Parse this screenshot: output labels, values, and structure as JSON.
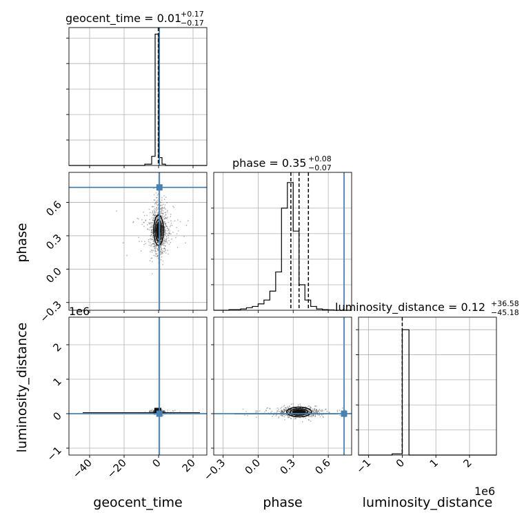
{
  "figure": {
    "type": "corner-plot"
  },
  "colors": {
    "truth": "#4682b4",
    "grid": "#b0b0b0",
    "ink": "#000000",
    "sample": "#333333"
  },
  "scale_labels": {
    "luminosity_y": "1e6",
    "luminosity_x": "1e6"
  },
  "titles": {
    "geocent_time": {
      "base": "geocent_time = 0.01",
      "sup": "+0.17",
      "sub": "−0.17"
    },
    "phase": {
      "base": "phase = 0.35",
      "sup": "+0.08",
      "sub": "−0.07"
    },
    "luminosity_distance": {
      "base": "luminosity_distance = 0.12",
      "sup": "+36.58",
      "sub": "−45.18"
    }
  },
  "chart_data": [
    {
      "type": "histogram",
      "panel": "geocent_time-marginal",
      "parameter": "geocent_time",
      "xlim": [
        -52,
        28
      ],
      "bin_edges": [
        -8,
        -4,
        -2,
        0,
        2,
        4,
        10
      ],
      "counts": [
        0.01,
        0.07,
        1.0,
        0.06,
        0.01,
        0
      ],
      "ylim": [
        0,
        1.05
      ],
      "quantile_lines": [
        -0.16,
        0.01,
        0.18
      ],
      "title": "geocent_time = 0.01 (+0.17 / −0.17)"
    },
    {
      "type": "histogram",
      "panel": "phase-marginal",
      "parameter": "phase",
      "xlim": [
        -0.38,
        0.8
      ],
      "bin_edges": [
        -0.3,
        -0.25,
        -0.2,
        -0.15,
        -0.1,
        -0.05,
        0.0,
        0.05,
        0.1,
        0.15,
        0.2,
        0.25,
        0.3,
        0.35,
        0.4,
        0.45,
        0.5,
        0.55,
        0.6,
        0.65
      ],
      "counts": [
        0,
        0.005,
        0.005,
        0.01,
        0.02,
        0.03,
        0.05,
        0.08,
        0.15,
        0.3,
        0.8,
        1.0,
        0.62,
        0.2,
        0.08,
        0.03,
        0.01,
        0.005,
        0.003
      ],
      "ylim": [
        0,
        1.08
      ],
      "quantile_lines": [
        0.28,
        0.35,
        0.43
      ],
      "truth": 0.735,
      "yticks": [
        0.2,
        0.4,
        0.6,
        0.8
      ],
      "title": "phase = 0.35 (+0.08 / −0.07)"
    },
    {
      "type": "histogram",
      "panel": "luminosity_distance-marginal",
      "parameter": "luminosity_distance",
      "scale": "1e6",
      "xlim": [
        -1.3,
        2.8
      ],
      "bin_edges": [
        -0.3,
        -0.05,
        0.0,
        0.2
      ],
      "counts": [
        0.01,
        0.01,
        1.0
      ],
      "ylim": [
        0,
        1.1
      ],
      "quantile_lines": [
        -4.5e-05,
        0.0,
        3.7e-05
      ],
      "title": "luminosity_distance = 0.12 (+36.58 / −45.18)"
    },
    {
      "type": "scatter",
      "panel": "phase-vs-geocent_time",
      "x_param": "geocent_time",
      "y_param": "phase",
      "xlim": [
        -52,
        28
      ],
      "ylim": [
        -0.37,
        0.87
      ],
      "yticks": [
        -0.3,
        0.0,
        0.3,
        0.6
      ],
      "ytick_labels": [
        "−0.3",
        "0.0",
        "0.3",
        "0.6"
      ],
      "ylabel": "phase",
      "center": [
        0,
        0.35
      ],
      "truth": [
        0.5,
        0.735
      ]
    },
    {
      "type": "scatter",
      "panel": "luminosity_distance-vs-geocent_time",
      "x_param": "geocent_time",
      "y_param": "luminosity_distance",
      "xlim": [
        -52,
        28
      ],
      "ylim": [
        -1.2,
        2.8
      ],
      "xticks": [
        -40,
        -20,
        0,
        20
      ],
      "xtick_labels": [
        "−40",
        "−20",
        "0",
        "20"
      ],
      "yticks": [
        -1,
        0,
        1,
        2
      ],
      "ytick_labels": [
        "−1",
        "0",
        "1",
        "2"
      ],
      "xlabel": "geocent_time",
      "ylabel": "luminosity_distance",
      "scale": "1e6",
      "center": [
        0,
        0.05
      ],
      "truth": [
        0.5,
        0.0
      ]
    },
    {
      "type": "scatter",
      "panel": "luminosity_distance-vs-phase",
      "x_param": "phase",
      "y_param": "luminosity_distance",
      "xlim": [
        -0.38,
        0.8
      ],
      "ylim": [
        -1.2,
        2.8
      ],
      "xticks": [
        -0.3,
        0.0,
        0.3,
        0.6
      ],
      "xtick_labels": [
        "−0.3",
        "0.0",
        "0.3",
        "0.6"
      ],
      "xlabel": "phase",
      "scale": "1e6",
      "center": [
        0.35,
        0.05
      ],
      "truth": [
        0.735,
        0.0
      ]
    },
    {
      "type": "axis",
      "panel": "luminosity_distance-x-axis",
      "xlim": [
        -1.3,
        2.8
      ],
      "xticks": [
        -1,
        0,
        1,
        2
      ],
      "xtick_labels": [
        "−1",
        "0",
        "1",
        "2"
      ],
      "xlabel": "luminosity_distance",
      "scale": "1e6"
    }
  ]
}
